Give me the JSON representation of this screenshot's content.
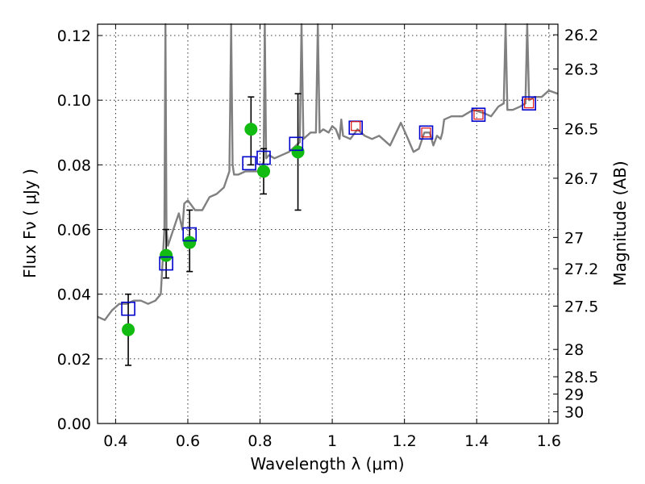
{
  "chart_data": {
    "type": "scatter",
    "title": "",
    "xlabel": "Wavelength  λ (μm)",
    "ylabel": "Flux  Fν  ( μJy )",
    "ylabel_right": "Magnitude (AB)",
    "xlim": [
      0.35,
      1.625
    ],
    "ylim": [
      0.0,
      0.1235
    ],
    "grid": true,
    "legend": "none",
    "x_ticks": [
      "0.4",
      "0.6",
      "0.8",
      "1",
      "1.2",
      "1.4",
      "1.6"
    ],
    "x_tick_values": [
      0.4,
      0.6,
      0.8,
      1.0,
      1.2,
      1.4,
      1.6
    ],
    "y_ticks": [
      "0.00",
      "0.02",
      "0.04",
      "0.06",
      "0.08",
      "0.10",
      "0.12"
    ],
    "y_tick_values": [
      0.0,
      0.02,
      0.04,
      0.06,
      0.08,
      0.1,
      0.12
    ],
    "mag_ticks": [
      "26.2",
      "26.3",
      "26.5",
      "26.7",
      "27",
      "27.2",
      "27.5",
      "28",
      "28.5",
      "29",
      "30"
    ],
    "mag_tick_values": [
      26.2,
      26.3,
      26.5,
      26.7,
      27.0,
      27.2,
      27.5,
      28.0,
      28.5,
      29.0,
      30.0
    ],
    "colors": {
      "model": "#808080",
      "observed": "#11bb11",
      "model_phot": "#0000cc",
      "model_phot_alt": "#dd1111",
      "errorbar": "#000000"
    },
    "series": [
      {
        "kind": "model_spectrum",
        "x": [
          0.35,
          0.37,
          0.39,
          0.41,
          0.43,
          0.45,
          0.47,
          0.49,
          0.51,
          0.525,
          0.535,
          0.538,
          0.541,
          0.545,
          0.56,
          0.575,
          0.585,
          0.59,
          0.6,
          0.62,
          0.64,
          0.66,
          0.68,
          0.7,
          0.715,
          0.72,
          0.724,
          0.728,
          0.74,
          0.76,
          0.78,
          0.8,
          0.81,
          0.813,
          0.817,
          0.825,
          0.84,
          0.86,
          0.88,
          0.9,
          0.91,
          0.915,
          0.92,
          0.94,
          0.955,
          0.96,
          0.965,
          0.975,
          0.99,
          1.0,
          1.01,
          1.02,
          1.025,
          1.03,
          1.05,
          1.07,
          1.09,
          1.11,
          1.13,
          1.16,
          1.19,
          1.21,
          1.225,
          1.24,
          1.255,
          1.27,
          1.28,
          1.29,
          1.3,
          1.305,
          1.31,
          1.33,
          1.36,
          1.39,
          1.42,
          1.44,
          1.46,
          1.475,
          1.48,
          1.485,
          1.5,
          1.52,
          1.535,
          1.54,
          1.545,
          1.56,
          1.58,
          1.6,
          1.625
        ],
        "y": [
          0.033,
          0.032,
          0.035,
          0.037,
          0.037,
          0.038,
          0.038,
          0.037,
          0.038,
          0.04,
          0.06,
          0.13,
          0.06,
          0.055,
          0.06,
          0.065,
          0.06,
          0.068,
          0.069,
          0.066,
          0.066,
          0.07,
          0.071,
          0.073,
          0.078,
          0.13,
          0.08,
          0.077,
          0.077,
          0.078,
          0.078,
          0.078,
          0.081,
          0.13,
          0.082,
          0.083,
          0.082,
          0.083,
          0.084,
          0.086,
          0.087,
          0.13,
          0.088,
          0.09,
          0.09,
          0.13,
          0.09,
          0.091,
          0.09,
          0.092,
          0.091,
          0.088,
          0.094,
          0.089,
          0.088,
          0.091,
          0.089,
          0.088,
          0.089,
          0.086,
          0.093,
          0.088,
          0.084,
          0.085,
          0.09,
          0.09,
          0.086,
          0.089,
          0.088,
          0.09,
          0.094,
          0.095,
          0.095,
          0.097,
          0.096,
          0.095,
          0.098,
          0.099,
          0.13,
          0.097,
          0.097,
          0.098,
          0.099,
          0.13,
          0.1,
          0.101,
          0.101,
          0.103,
          0.102
        ]
      },
      {
        "kind": "observed_photometry",
        "x": [
          0.435,
          0.54,
          0.605,
          0.775,
          0.81,
          0.905
        ],
        "y": [
          0.029,
          0.052,
          0.056,
          0.091,
          0.078,
          0.084
        ],
        "yerr_low": [
          0.018,
          0.045,
          0.047,
          0.08,
          0.071,
          0.066
        ],
        "yerr_high": [
          0.04,
          0.06,
          0.066,
          0.101,
          0.085,
          0.102
        ]
      },
      {
        "kind": "model_photometry",
        "x": [
          0.435,
          0.54,
          0.605,
          0.77,
          0.81,
          0.9,
          1.065,
          1.26,
          1.405,
          1.545
        ],
        "y": [
          0.0355,
          0.0495,
          0.0585,
          0.0805,
          0.0822,
          0.0865,
          0.0915,
          0.09,
          0.0955,
          0.099
        ]
      },
      {
        "kind": "model_photometry_alt",
        "x": [
          1.065,
          1.26,
          1.405,
          1.545
        ],
        "y": [
          0.092,
          0.09,
          0.0955,
          0.099
        ]
      }
    ]
  }
}
